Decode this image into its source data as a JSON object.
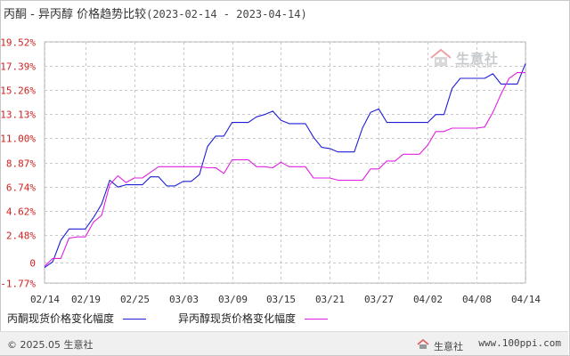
{
  "title": {
    "main": "丙酮 - 异丙醇 价格趋势比较",
    "range": "(2023-02-14 - 2023-04-14)"
  },
  "chart_data": {
    "type": "line",
    "ylim": [
      -1.77,
      19.52
    ],
    "y_ticks": [
      "19.52%",
      "17.39%",
      "15.26%",
      "13.13%",
      "11.00%",
      "8.87%",
      "6.74%",
      "4.62%",
      "2.48%",
      "0",
      "-1.77%"
    ],
    "y_tick_values": [
      19.52,
      17.39,
      15.26,
      13.13,
      11.0,
      8.87,
      6.74,
      4.62,
      2.48,
      0,
      -1.77
    ],
    "x_ticks": [
      "02/14",
      "02/19",
      "02/25",
      "03/03",
      "03/09",
      "03/15",
      "03/21",
      "03/27",
      "04/02",
      "04/08",
      "04/14"
    ],
    "x_tick_days": [
      0,
      5,
      11,
      17,
      23,
      29,
      35,
      41,
      47,
      53,
      59
    ],
    "xlim": [
      0,
      59
    ],
    "grid": true,
    "series": [
      {
        "name": "丙酮现货价格变化幅度",
        "color": "#1f1fd6",
        "points": [
          [
            0,
            -0.4
          ],
          [
            1,
            0.1
          ],
          [
            2,
            2.0
          ],
          [
            3,
            3.0
          ],
          [
            4,
            3.0
          ],
          [
            5,
            3.0
          ],
          [
            6,
            4.0
          ],
          [
            7,
            5.2
          ],
          [
            8,
            7.3
          ],
          [
            9,
            6.7
          ],
          [
            10,
            6.9
          ],
          [
            11,
            6.9
          ],
          [
            12,
            6.9
          ],
          [
            13,
            7.6
          ],
          [
            14,
            7.6
          ],
          [
            15,
            6.8
          ],
          [
            16,
            6.8
          ],
          [
            17,
            7.2
          ],
          [
            18,
            7.2
          ],
          [
            19,
            7.8
          ],
          [
            20,
            10.3
          ],
          [
            21,
            11.2
          ],
          [
            22,
            11.2
          ],
          [
            23,
            12.4
          ],
          [
            24,
            12.4
          ],
          [
            25,
            12.4
          ],
          [
            26,
            12.9
          ],
          [
            27,
            13.1
          ],
          [
            28,
            13.4
          ],
          [
            29,
            12.6
          ],
          [
            30,
            12.3
          ],
          [
            31,
            12.3
          ],
          [
            32,
            12.3
          ],
          [
            33,
            11.1
          ],
          [
            34,
            10.2
          ],
          [
            35,
            10.1
          ],
          [
            36,
            9.8
          ],
          [
            37,
            9.8
          ],
          [
            38,
            9.8
          ],
          [
            39,
            11.9
          ],
          [
            40,
            13.3
          ],
          [
            41,
            13.6
          ],
          [
            42,
            12.4
          ],
          [
            43,
            12.4
          ],
          [
            44,
            12.4
          ],
          [
            45,
            12.4
          ],
          [
            46,
            12.4
          ],
          [
            47,
            12.4
          ],
          [
            48,
            13.1
          ],
          [
            49,
            13.1
          ],
          [
            50,
            15.4
          ],
          [
            51,
            16.3
          ],
          [
            52,
            16.3
          ],
          [
            53,
            16.3
          ],
          [
            54,
            16.3
          ],
          [
            55,
            16.7
          ],
          [
            56,
            15.8
          ],
          [
            57,
            15.8
          ],
          [
            58,
            15.8
          ],
          [
            59,
            17.6
          ]
        ]
      },
      {
        "name": "异丙醇现货价格变化幅度",
        "color": "#e020e0",
        "points": [
          [
            0,
            -0.3
          ],
          [
            1,
            0.4
          ],
          [
            2,
            0.4
          ],
          [
            3,
            2.2
          ],
          [
            4,
            2.3
          ],
          [
            5,
            2.3
          ],
          [
            6,
            3.6
          ],
          [
            7,
            4.2
          ],
          [
            8,
            6.9
          ],
          [
            9,
            7.7
          ],
          [
            10,
            7.1
          ],
          [
            11,
            7.5
          ],
          [
            12,
            7.5
          ],
          [
            13,
            8.0
          ],
          [
            14,
            8.5
          ],
          [
            15,
            8.5
          ],
          [
            16,
            8.5
          ],
          [
            17,
            8.5
          ],
          [
            18,
            8.5
          ],
          [
            19,
            8.5
          ],
          [
            20,
            8.4
          ],
          [
            21,
            8.4
          ],
          [
            22,
            7.9
          ],
          [
            23,
            9.1
          ],
          [
            24,
            9.1
          ],
          [
            25,
            9.1
          ],
          [
            26,
            8.5
          ],
          [
            27,
            8.5
          ],
          [
            28,
            8.4
          ],
          [
            29,
            8.9
          ],
          [
            30,
            8.5
          ],
          [
            31,
            8.5
          ],
          [
            32,
            8.5
          ],
          [
            33,
            7.5
          ],
          [
            34,
            7.5
          ],
          [
            35,
            7.5
          ],
          [
            36,
            7.3
          ],
          [
            37,
            7.3
          ],
          [
            38,
            7.3
          ],
          [
            39,
            7.3
          ],
          [
            40,
            8.3
          ],
          [
            41,
            8.3
          ],
          [
            42,
            9.0
          ],
          [
            43,
            9.0
          ],
          [
            44,
            9.6
          ],
          [
            45,
            9.6
          ],
          [
            46,
            9.6
          ],
          [
            47,
            10.4
          ],
          [
            48,
            11.6
          ],
          [
            49,
            11.6
          ],
          [
            50,
            11.9
          ],
          [
            51,
            11.9
          ],
          [
            52,
            11.9
          ],
          [
            53,
            11.9
          ],
          [
            54,
            12.0
          ],
          [
            55,
            13.3
          ],
          [
            56,
            14.9
          ],
          [
            57,
            16.3
          ],
          [
            58,
            16.8
          ],
          [
            59,
            16.8
          ]
        ]
      }
    ]
  },
  "legend": {
    "item1": "丙酮现货价格变化幅度",
    "item2": "异丙醇现货价格变化幅度"
  },
  "watermark": {
    "text": "生意社",
    "sub": "100PPI.COM"
  },
  "footer": {
    "copyright": "© 2025.05 生意社",
    "site_name": "生意社",
    "url": "www.100ppi.com"
  }
}
